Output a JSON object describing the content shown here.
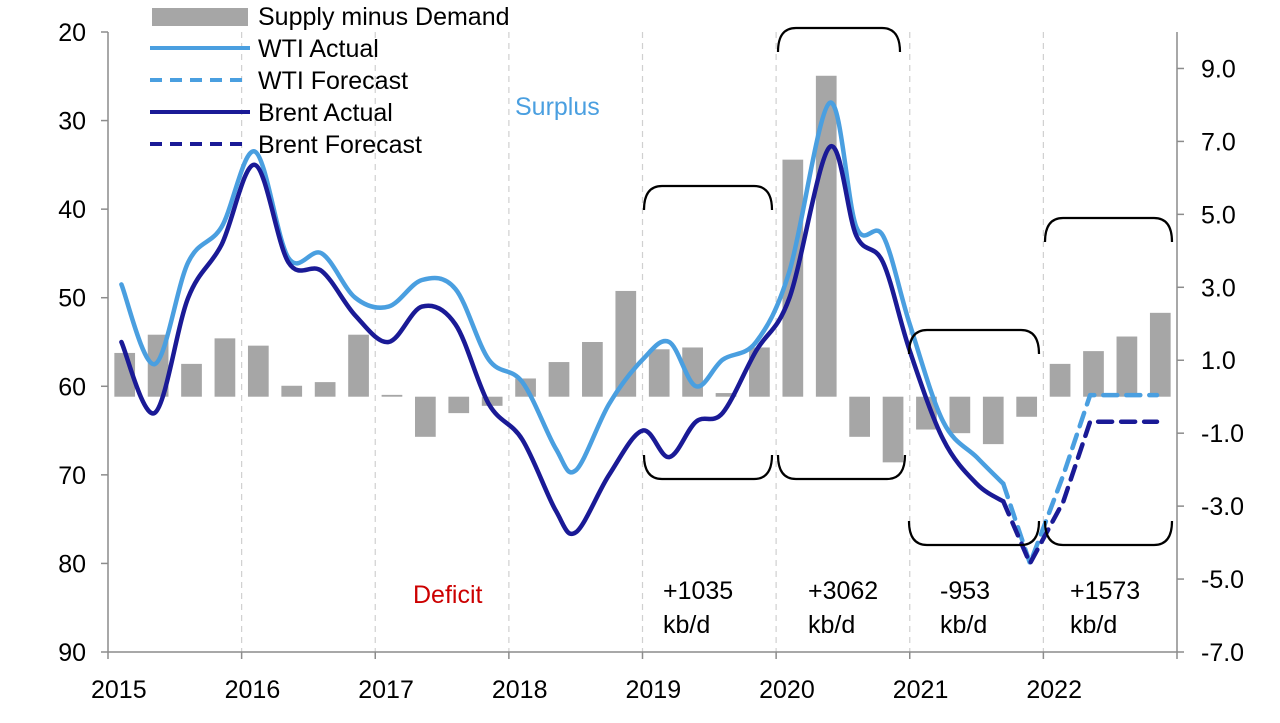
{
  "chart_data": {
    "type": "bar+line",
    "title": "",
    "left_axis": {
      "range": [
        20,
        90
      ],
      "ticks": [
        20,
        30,
        40,
        50,
        60,
        70,
        80,
        90
      ],
      "inverted": true
    },
    "right_axis": {
      "range": [
        10.0,
        -7.0
      ],
      "ticks": [
        "9.0",
        "7.0",
        "5.0",
        "3.0",
        "1.0",
        "-1.0",
        "-3.0",
        "-5.0",
        "-7.0"
      ]
    },
    "x_axis": {
      "range": [
        2015,
        2023
      ],
      "ticks": [
        "2015",
        "2016",
        "2017",
        "2018",
        "2019",
        "2020",
        "2021",
        "2022"
      ]
    },
    "gridlines": "vertical dashed at year starts",
    "legend": [
      {
        "label": "Supply minus Demand",
        "style": "bar",
        "color": "#a6a6a6"
      },
      {
        "label": "WTI Actual",
        "style": "solid",
        "color": "#4a9fe0"
      },
      {
        "label": "WTI Forecast",
        "style": "dashed",
        "color": "#4a9fe0"
      },
      {
        "label": "Brent Actual",
        "style": "solid",
        "color": "#1a1a96"
      },
      {
        "label": "Brent Forecast",
        "style": "dashed",
        "color": "#1a1a96"
      }
    ],
    "bars": {
      "name": "Supply minus Demand",
      "unit": "right axis",
      "x": [
        2015.125,
        2015.375,
        2015.625,
        2015.875,
        2016.125,
        2016.375,
        2016.625,
        2016.875,
        2017.125,
        2017.375,
        2017.625,
        2017.875,
        2018.125,
        2018.375,
        2018.625,
        2018.875,
        2019.125,
        2019.375,
        2019.625,
        2019.875,
        2020.125,
        2020.375,
        2020.625,
        2020.875,
        2021.125,
        2021.375,
        2021.625,
        2021.875,
        2022.125,
        2022.375,
        2022.625,
        2022.875
      ],
      "values": [
        1.2,
        1.7,
        0.9,
        1.6,
        1.4,
        0.3,
        0.4,
        1.7,
        0.05,
        -1.1,
        -0.45,
        -0.25,
        0.5,
        0.95,
        1.5,
        2.9,
        1.3,
        1.35,
        0.1,
        1.35,
        6.5,
        8.8,
        -1.1,
        -1.8,
        -0.9,
        -1.0,
        -1.3,
        -0.55,
        0.9,
        1.25,
        1.65,
        2.3
      ]
    },
    "series": [
      {
        "name": "WTI Actual",
        "x": [
          2015.1,
          2015.35,
          2015.6,
          2015.85,
          2016.1,
          2016.35,
          2016.6,
          2016.85,
          2017.1,
          2017.35,
          2017.6,
          2017.85,
          2018.1,
          2018.35,
          2018.5,
          2018.75,
          2019.0,
          2019.2,
          2019.4,
          2019.6,
          2019.85,
          2020.1,
          2020.4,
          2020.6,
          2020.8,
          2021.0,
          2021.25,
          2021.5,
          2021.7
        ],
        "values": [
          48.5,
          57.5,
          46,
          42,
          33.5,
          45.5,
          45,
          50,
          51,
          48,
          49,
          57,
          59.5,
          67,
          69.5,
          62,
          57,
          55,
          60,
          57,
          55,
          47,
          28,
          42,
          43,
          53,
          64,
          68,
          71
        ]
      },
      {
        "name": "WTI Forecast",
        "x": [
          2021.7,
          2021.9,
          2022.15,
          2022.35,
          2022.6,
          2022.85
        ],
        "values": [
          71,
          80,
          70,
          61,
          61,
          61
        ]
      },
      {
        "name": "Brent Actual",
        "x": [
          2015.1,
          2015.35,
          2015.6,
          2015.85,
          2016.1,
          2016.35,
          2016.6,
          2016.85,
          2017.1,
          2017.35,
          2017.6,
          2017.85,
          2018.1,
          2018.35,
          2018.5,
          2018.75,
          2019.0,
          2019.2,
          2019.4,
          2019.6,
          2019.85,
          2020.1,
          2020.4,
          2020.6,
          2020.8,
          2021.0,
          2021.25,
          2021.5,
          2021.7
        ],
        "values": [
          55,
          63,
          50,
          44,
          35,
          46,
          47,
          52,
          55,
          51,
          53,
          62,
          66,
          74,
          76.5,
          70,
          65,
          68,
          64,
          63,
          56,
          50,
          33,
          43,
          46,
          56,
          66,
          71,
          73
        ]
      },
      {
        "name": "Brent Forecast",
        "x": [
          2021.7,
          2021.9,
          2022.15,
          2022.35,
          2022.6,
          2022.85
        ],
        "values": [
          73,
          80,
          73,
          64,
          64,
          64
        ]
      }
    ],
    "annotations": [
      {
        "text": "Surplus",
        "color": "#4a9fe0"
      },
      {
        "text": "Deficit",
        "color": "#cc0000"
      }
    ],
    "periods": [
      {
        "year": 2019,
        "line1": "+1035",
        "line2": "kb/d"
      },
      {
        "year": 2020,
        "line1": "+3062",
        "line2": "kb/d"
      },
      {
        "year": 2021,
        "line1": "-953",
        "line2": "kb/d"
      },
      {
        "year": 2022,
        "line1": "+1573",
        "line2": "kb/d"
      }
    ]
  }
}
